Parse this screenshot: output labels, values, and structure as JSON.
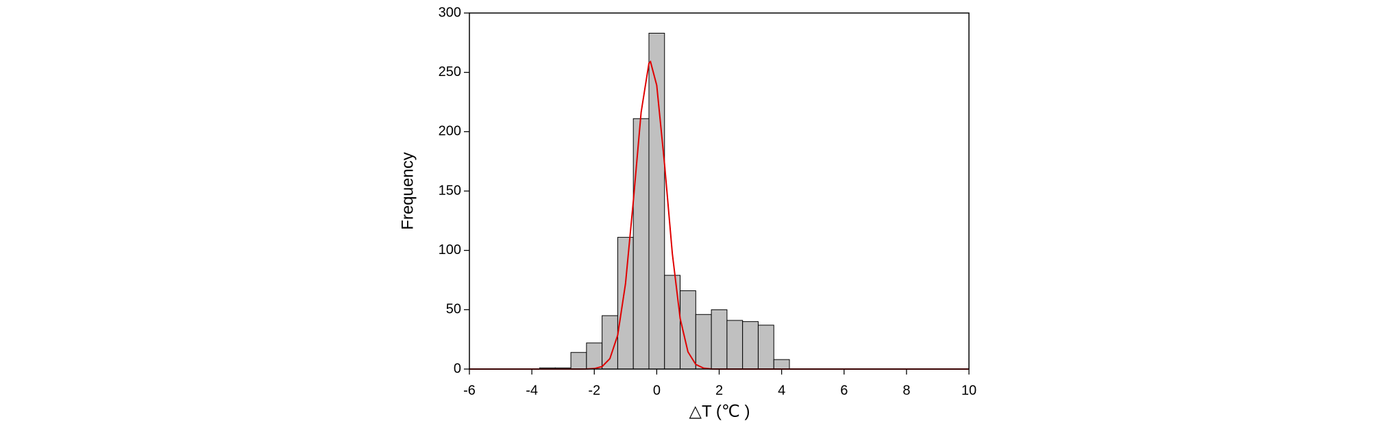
{
  "chart_data": {
    "type": "histogram",
    "xlabel": "△T (℃ )",
    "ylabel": "Frequency",
    "bins": [
      -3.75,
      -3.25,
      -2.75,
      -2.25,
      -1.75,
      -1.25,
      -0.75,
      -0.25,
      0.25,
      0.75,
      1.25,
      1.75,
      2.25,
      2.75,
      3.25,
      3.75,
      4.25
    ],
    "values": [
      1,
      1,
      14,
      22,
      45,
      111,
      211,
      283,
      79,
      66,
      46,
      50,
      41,
      40,
      37,
      8
    ],
    "color": "#c0c0c0",
    "fit": {
      "color": "#e00000",
      "x": [
        -6,
        -4,
        -3,
        -2.5,
        -2.25,
        -2,
        -1.75,
        -1.5,
        -1.25,
        -1,
        -0.75,
        -0.5,
        -0.25,
        -0.2,
        0,
        0.25,
        0.5,
        0.75,
        1,
        1.25,
        1.5,
        1.75,
        2,
        3,
        4,
        6,
        8,
        10
      ],
      "values": [
        0,
        0,
        0,
        0,
        0.1,
        0.4,
        2.1,
        8.8,
        28.6,
        72,
        141.4,
        216.3,
        257.7,
        259,
        239.1,
        172.8,
        97.2,
        42.6,
        14.5,
        3.9,
        0.8,
        0.1,
        0,
        0,
        0,
        0,
        0,
        0
      ]
    },
    "xlim": [
      -6,
      10
    ],
    "xticks": [
      -6,
      -4,
      -2,
      0,
      2,
      4,
      6,
      8,
      10
    ],
    "ylim": [
      0,
      300
    ],
    "yticks": [
      0,
      50,
      100,
      150,
      200,
      250,
      300
    ],
    "grid": false
  }
}
